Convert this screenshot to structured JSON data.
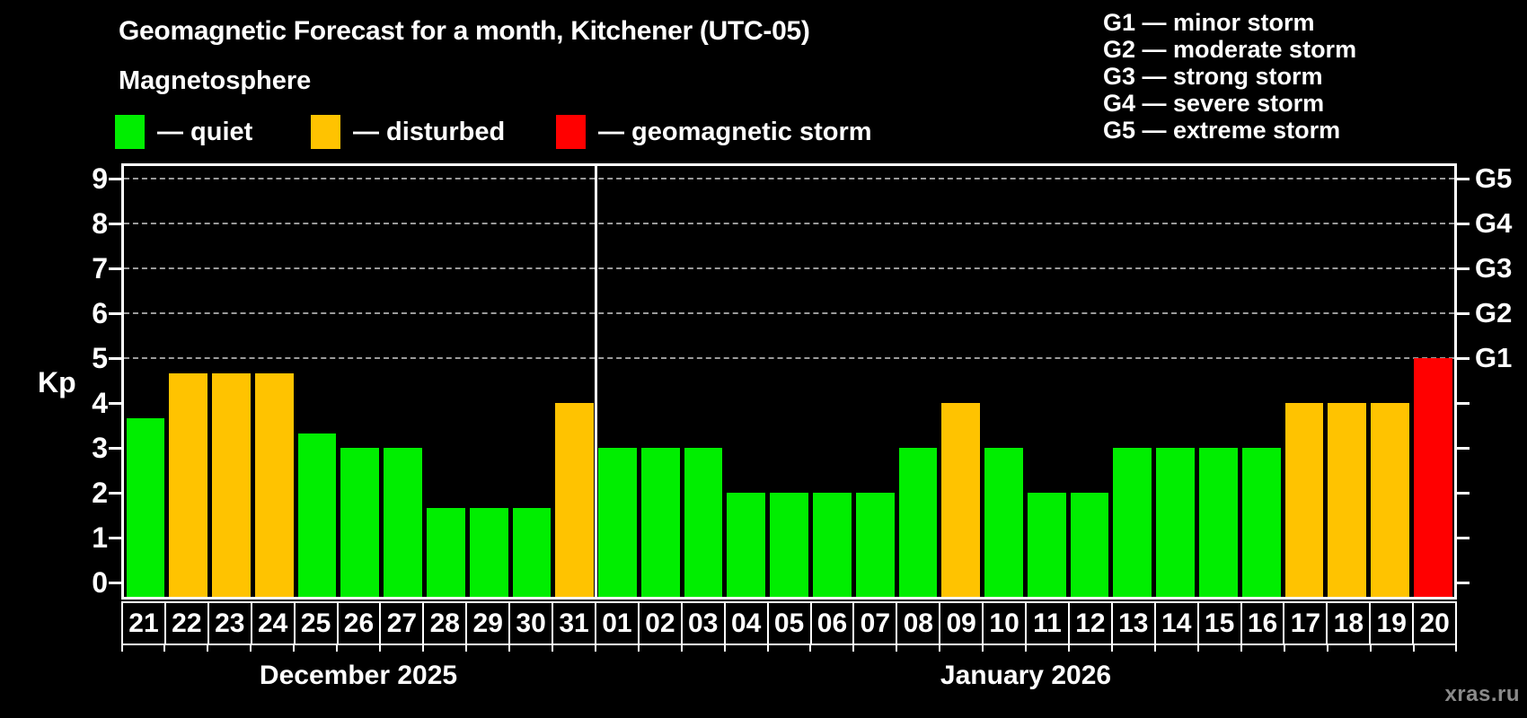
{
  "header": {
    "title": "Geomagnetic Forecast for a month, Kitchener (UTC-05)",
    "subtitle": "Magnetosphere"
  },
  "legend": {
    "items": [
      {
        "state": "quiet",
        "label": "— quiet",
        "color": "#00ee00"
      },
      {
        "state": "disturbed",
        "label": "— disturbed",
        "color": "#ffc300"
      },
      {
        "state": "storm",
        "label": "— geomagnetic storm",
        "color": "#ff0000"
      }
    ]
  },
  "g_scale": {
    "items": [
      "G1 — minor storm",
      "G2 — moderate storm",
      "G3 — strong storm",
      "G4 — severe storm",
      "G5 — extreme storm"
    ]
  },
  "colors": {
    "background": "#000000",
    "axis": "#ffffff",
    "grid": "#9b9b9b",
    "text": "#ffffff",
    "watermark": "#8a8a8a",
    "states": {
      "quiet": "#00ee00",
      "disturbed": "#ffc300",
      "storm": "#ff0000"
    }
  },
  "watermark": "xras.ru",
  "chart_data": {
    "type": "bar",
    "title": "Geomagnetic Forecast for a month, Kitchener (UTC-05)",
    "ylabel": "Kp",
    "ylim": [
      0,
      9
    ],
    "yticks": [
      0,
      1,
      2,
      3,
      4,
      5,
      6,
      7,
      8,
      9
    ],
    "gridlines_at": [
      5,
      6,
      7,
      8,
      9
    ],
    "grid": "dashed-horizontal",
    "legend_position": "top-left",
    "right_axis": [
      {
        "kp": 5,
        "label": "G1"
      },
      {
        "kp": 6,
        "label": "G2"
      },
      {
        "kp": 7,
        "label": "G3"
      },
      {
        "kp": 8,
        "label": "G4"
      },
      {
        "kp": 9,
        "label": "G5"
      }
    ],
    "months": [
      {
        "label": "December 2025",
        "days": 11
      },
      {
        "label": "January 2026",
        "days": 20
      }
    ],
    "bars": [
      {
        "day": "21",
        "kp": 3.67,
        "state": "quiet"
      },
      {
        "day": "22",
        "kp": 4.67,
        "state": "disturbed"
      },
      {
        "day": "23",
        "kp": 4.67,
        "state": "disturbed"
      },
      {
        "day": "24",
        "kp": 4.67,
        "state": "disturbed"
      },
      {
        "day": "25",
        "kp": 3.33,
        "state": "quiet"
      },
      {
        "day": "26",
        "kp": 3,
        "state": "quiet"
      },
      {
        "day": "27",
        "kp": 3,
        "state": "quiet"
      },
      {
        "day": "28",
        "kp": 1.67,
        "state": "quiet"
      },
      {
        "day": "29",
        "kp": 1.67,
        "state": "quiet"
      },
      {
        "day": "30",
        "kp": 1.67,
        "state": "quiet"
      },
      {
        "day": "31",
        "kp": 4,
        "state": "disturbed"
      },
      {
        "day": "01",
        "kp": 3,
        "state": "quiet"
      },
      {
        "day": "02",
        "kp": 3,
        "state": "quiet"
      },
      {
        "day": "03",
        "kp": 3,
        "state": "quiet"
      },
      {
        "day": "04",
        "kp": 2,
        "state": "quiet"
      },
      {
        "day": "05",
        "kp": 2,
        "state": "quiet"
      },
      {
        "day": "06",
        "kp": 2,
        "state": "quiet"
      },
      {
        "day": "07",
        "kp": 2,
        "state": "quiet"
      },
      {
        "day": "08",
        "kp": 3,
        "state": "quiet"
      },
      {
        "day": "09",
        "kp": 4,
        "state": "disturbed"
      },
      {
        "day": "10",
        "kp": 3,
        "state": "quiet"
      },
      {
        "day": "11",
        "kp": 2,
        "state": "quiet"
      },
      {
        "day": "12",
        "kp": 2,
        "state": "quiet"
      },
      {
        "day": "13",
        "kp": 3,
        "state": "quiet"
      },
      {
        "day": "14",
        "kp": 3,
        "state": "quiet"
      },
      {
        "day": "15",
        "kp": 3,
        "state": "quiet"
      },
      {
        "day": "16",
        "kp": 3,
        "state": "quiet"
      },
      {
        "day": "17",
        "kp": 4,
        "state": "disturbed"
      },
      {
        "day": "18",
        "kp": 4,
        "state": "disturbed"
      },
      {
        "day": "19",
        "kp": 4,
        "state": "disturbed"
      },
      {
        "day": "20",
        "kp": 5,
        "state": "storm"
      }
    ]
  }
}
